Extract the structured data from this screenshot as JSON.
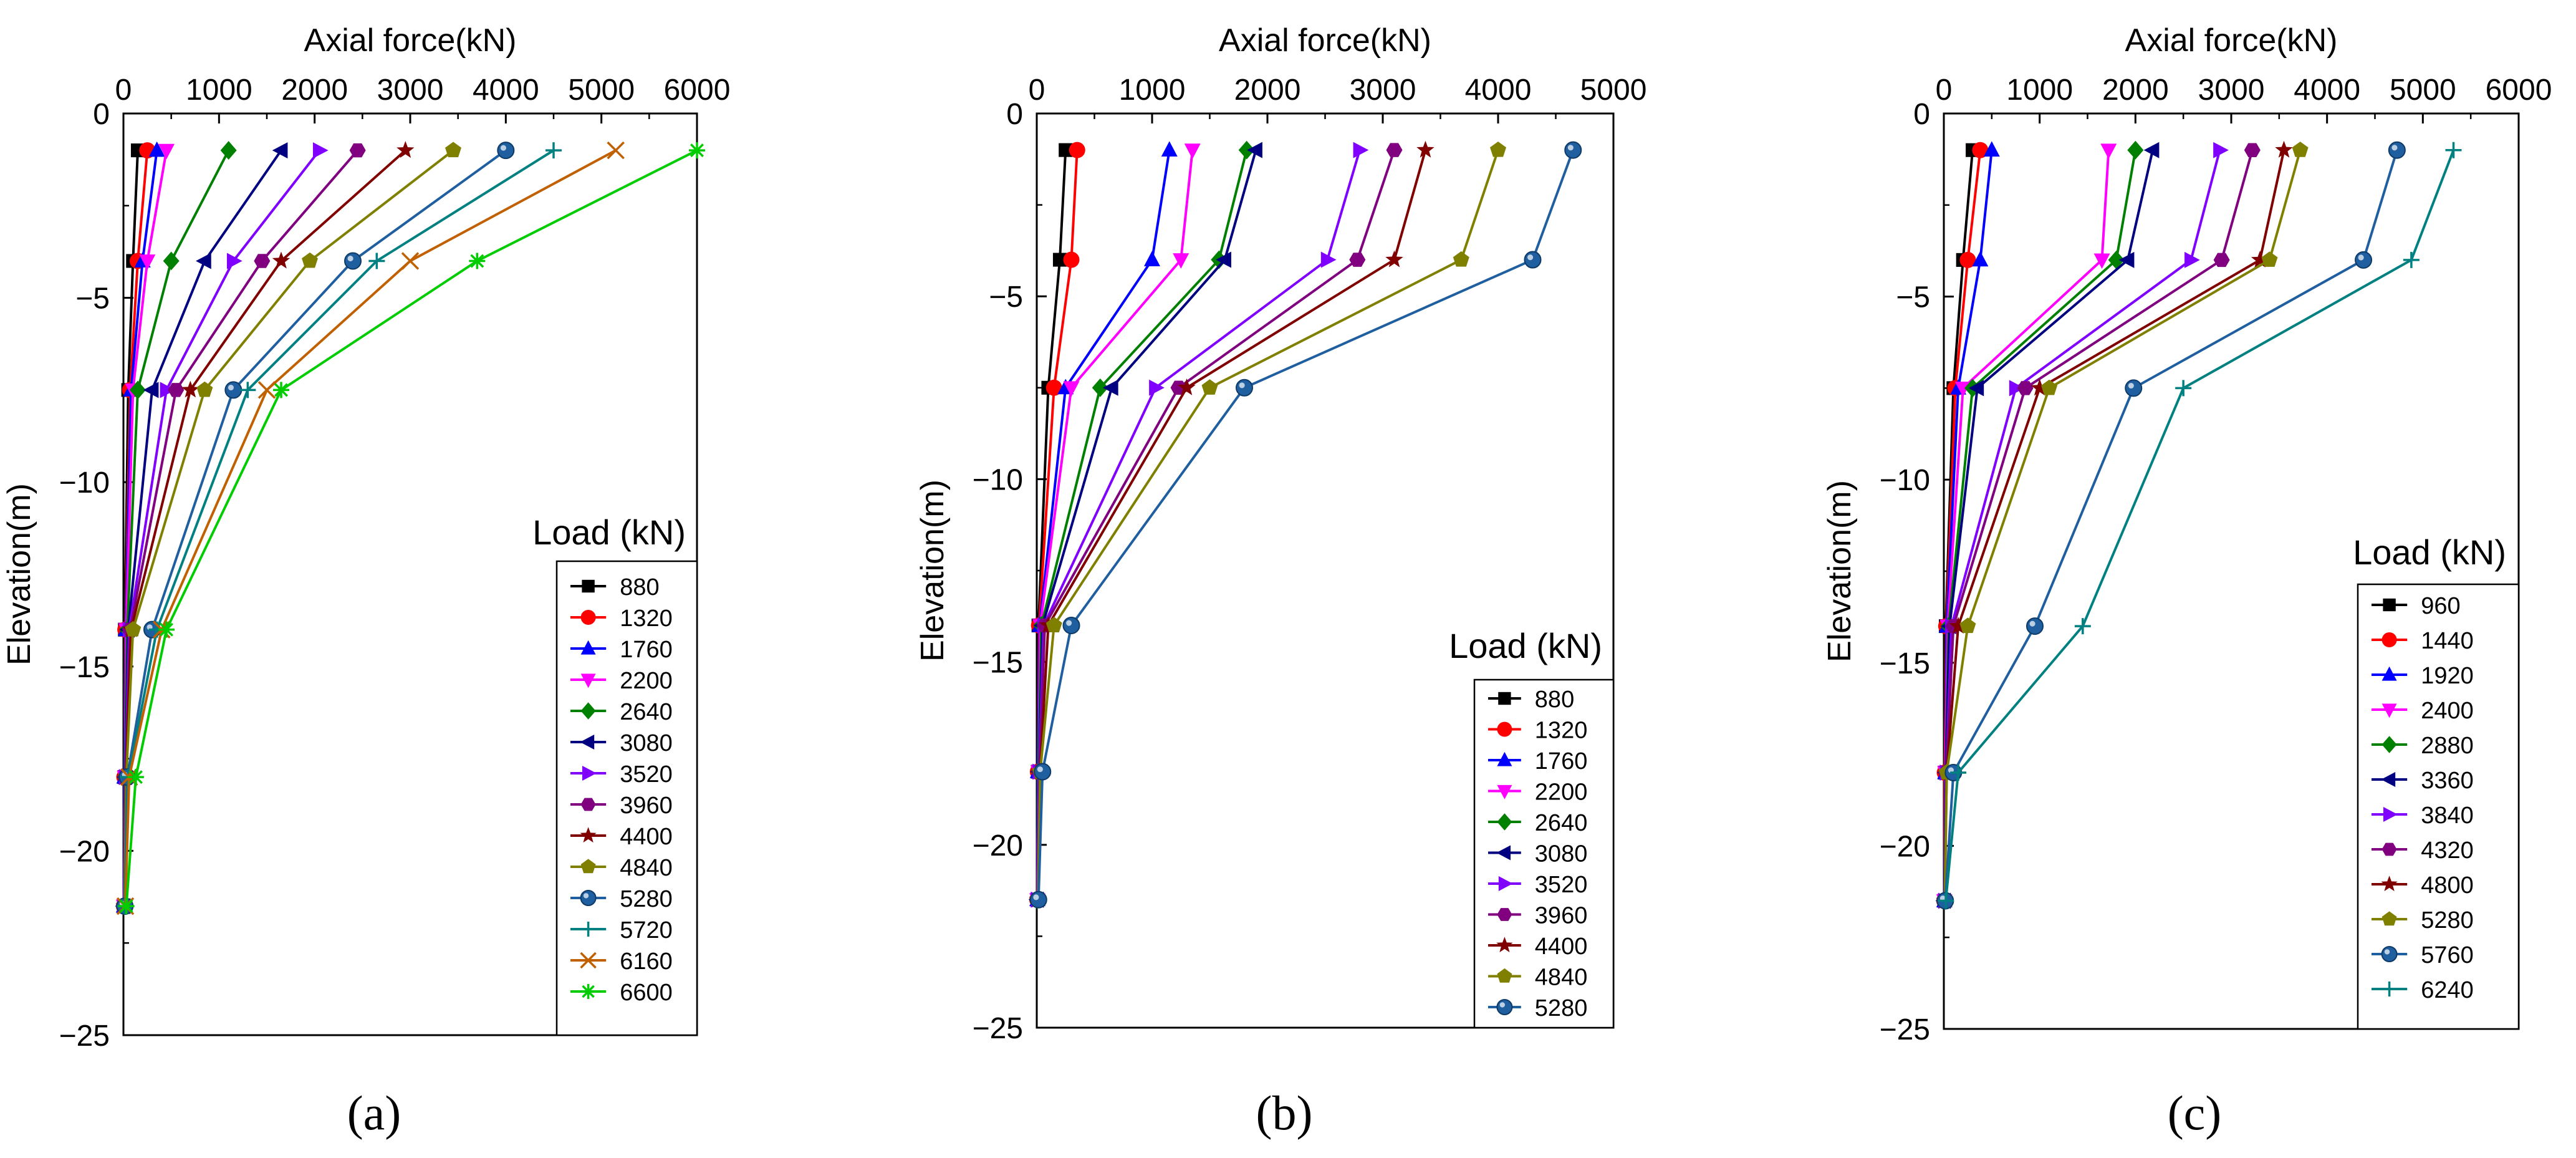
{
  "figure": {
    "panel_labels": [
      "(a)",
      "(b)",
      "(c)"
    ]
  },
  "chart_data": [
    {
      "type": "line",
      "panel": "(a)",
      "xlabel": "Axial force(kN)",
      "ylabel": "Elevation(m)",
      "xlim": [
        0,
        6000
      ],
      "ylim": [
        -25,
        0
      ],
      "xticks": [
        0,
        1000,
        2000,
        3000,
        4000,
        5000,
        6000
      ],
      "yticks": [
        0,
        -5,
        -10,
        -15,
        -20,
        -25
      ],
      "legend_title": "Load (kN)",
      "elevations": [
        -1,
        -4,
        -7.5,
        -14,
        -18,
        -21.5
      ],
      "series": [
        {
          "name": "880",
          "color": "#000000",
          "marker": "square",
          "x": [
            150,
            100,
            50,
            15,
            10,
            5
          ]
        },
        {
          "name": "1320",
          "color": "#ff0000",
          "marker": "circle",
          "x": [
            250,
            150,
            70,
            20,
            10,
            5
          ]
        },
        {
          "name": "1760",
          "color": "#0000ff",
          "marker": "triangle-up",
          "x": [
            350,
            200,
            80,
            25,
            10,
            5
          ]
        },
        {
          "name": "2200",
          "color": "#ff00ff",
          "marker": "triangle-down",
          "x": [
            450,
            250,
            100,
            30,
            15,
            5
          ]
        },
        {
          "name": "2640",
          "color": "#008000",
          "marker": "diamond",
          "x": [
            1100,
            500,
            150,
            40,
            15,
            5
          ]
        },
        {
          "name": "3080",
          "color": "#000080",
          "marker": "triangle-left",
          "x": [
            1650,
            850,
            300,
            50,
            20,
            5
          ]
        },
        {
          "name": "3520",
          "color": "#8000ff",
          "marker": "triangle-right",
          "x": [
            2050,
            1150,
            450,
            60,
            20,
            5
          ]
        },
        {
          "name": "3960",
          "color": "#800080",
          "marker": "hexagon",
          "x": [
            2450,
            1450,
            550,
            70,
            25,
            10
          ]
        },
        {
          "name": "4400",
          "color": "#800000",
          "marker": "star",
          "x": [
            2950,
            1650,
            700,
            80,
            25,
            10
          ]
        },
        {
          "name": "4840",
          "color": "#808000",
          "marker": "pentagon",
          "x": [
            3450,
            1950,
            850,
            100,
            30,
            10
          ]
        },
        {
          "name": "5280",
          "color": "#1f5fa0",
          "marker": "sphere",
          "x": [
            4000,
            2400,
            1150,
            300,
            40,
            15
          ]
        },
        {
          "name": "5720",
          "color": "#008080",
          "marker": "plus",
          "x": [
            4500,
            2650,
            1300,
            350,
            50,
            15
          ]
        },
        {
          "name": "6160",
          "color": "#c06000",
          "marker": "x",
          "x": [
            5150,
            3000,
            1500,
            400,
            60,
            20
          ]
        },
        {
          "name": "6600",
          "color": "#00cc00",
          "marker": "asterisk",
          "x": [
            6000,
            3700,
            1650,
            450,
            130,
            30
          ]
        }
      ]
    },
    {
      "type": "line",
      "panel": "(b)",
      "xlabel": "Axial force(kN)",
      "ylabel": "Elevation(m)",
      "xlim": [
        0,
        5000
      ],
      "ylim": [
        -25,
        0
      ],
      "xticks": [
        0,
        1000,
        2000,
        3000,
        4000,
        5000
      ],
      "yticks": [
        0,
        -5,
        -10,
        -15,
        -20,
        -25
      ],
      "legend_title": "Load (kN)",
      "elevations": [
        -1,
        -4,
        -7.5,
        -14,
        -18,
        -21.5
      ],
      "series": [
        {
          "name": "880",
          "color": "#000000",
          "marker": "square",
          "x": [
            250,
            200,
            100,
            15,
            10,
            5
          ]
        },
        {
          "name": "1320",
          "color": "#ff0000",
          "marker": "circle",
          "x": [
            350,
            300,
            150,
            20,
            10,
            5
          ]
        },
        {
          "name": "1760",
          "color": "#0000ff",
          "marker": "triangle-up",
          "x": [
            1150,
            1000,
            250,
            25,
            10,
            5
          ]
        },
        {
          "name": "2200",
          "color": "#ff00ff",
          "marker": "triangle-down",
          "x": [
            1350,
            1250,
            300,
            30,
            15,
            5
          ]
        },
        {
          "name": "2640",
          "color": "#008000",
          "marker": "diamond",
          "x": [
            1820,
            1580,
            550,
            40,
            15,
            5
          ]
        },
        {
          "name": "3080",
          "color": "#000080",
          "marker": "triangle-left",
          "x": [
            1900,
            1630,
            650,
            50,
            20,
            5
          ]
        },
        {
          "name": "3520",
          "color": "#8000ff",
          "marker": "triangle-right",
          "x": [
            2800,
            2520,
            1030,
            60,
            20,
            5
          ]
        },
        {
          "name": "3960",
          "color": "#800080",
          "marker": "hexagon",
          "x": [
            3100,
            2780,
            1230,
            70,
            25,
            10
          ]
        },
        {
          "name": "4400",
          "color": "#800000",
          "marker": "star",
          "x": [
            3370,
            3100,
            1300,
            100,
            30,
            10
          ]
        },
        {
          "name": "4840",
          "color": "#808000",
          "marker": "pentagon",
          "x": [
            4000,
            3680,
            1500,
            150,
            30,
            10
          ]
        },
        {
          "name": "5280",
          "color": "#1f5fa0",
          "marker": "sphere",
          "x": [
            4650,
            4300,
            1800,
            300,
            50,
            15
          ]
        }
      ]
    },
    {
      "type": "line",
      "panel": "(c)",
      "xlabel": "Axial force(kN)",
      "ylabel": "Elevation(m)",
      "xlim": [
        0,
        6000
      ],
      "ylim": [
        -25,
        0
      ],
      "xticks": [
        0,
        1000,
        2000,
        3000,
        4000,
        5000,
        6000
      ],
      "yticks": [
        0,
        -5,
        -10,
        -15,
        -20,
        -25
      ],
      "legend_title": "Load (kN)",
      "elevations": [
        -1,
        -4,
        -7.5,
        -14,
        -18,
        -21.5
      ],
      "series": [
        {
          "name": "960",
          "color": "#000000",
          "marker": "square",
          "x": [
            300,
            200,
            100,
            20,
            10,
            5
          ]
        },
        {
          "name": "1440",
          "color": "#ff0000",
          "marker": "circle",
          "x": [
            380,
            250,
            120,
            25,
            10,
            5
          ]
        },
        {
          "name": "1920",
          "color": "#0000ff",
          "marker": "triangle-up",
          "x": [
            500,
            380,
            150,
            30,
            15,
            5
          ]
        },
        {
          "name": "2400",
          "color": "#ff00ff",
          "marker": "triangle-down",
          "x": [
            1720,
            1650,
            200,
            40,
            15,
            5
          ]
        },
        {
          "name": "2880",
          "color": "#008000",
          "marker": "diamond",
          "x": [
            2000,
            1800,
            300,
            50,
            20,
            5
          ]
        },
        {
          "name": "3360",
          "color": "#000080",
          "marker": "triangle-left",
          "x": [
            2180,
            1920,
            350,
            60,
            20,
            5
          ]
        },
        {
          "name": "3840",
          "color": "#8000ff",
          "marker": "triangle-right",
          "x": [
            2880,
            2580,
            750,
            80,
            25,
            10
          ]
        },
        {
          "name": "4320",
          "color": "#800080",
          "marker": "hexagon",
          "x": [
            3220,
            2900,
            850,
            100,
            25,
            10
          ]
        },
        {
          "name": "4800",
          "color": "#800000",
          "marker": "star",
          "x": [
            3550,
            3300,
            1000,
            150,
            30,
            10
          ]
        },
        {
          "name": "5280",
          "color": "#808000",
          "marker": "pentagon",
          "x": [
            3720,
            3400,
            1100,
            250,
            30,
            10
          ]
        },
        {
          "name": "5760",
          "color": "#1f5fa0",
          "marker": "sphere",
          "x": [
            4730,
            4380,
            1980,
            950,
            100,
            15
          ]
        },
        {
          "name": "6240",
          "color": "#008080",
          "marker": "plus",
          "x": [
            5320,
            4880,
            2500,
            1450,
            150,
            20
          ]
        }
      ]
    }
  ]
}
